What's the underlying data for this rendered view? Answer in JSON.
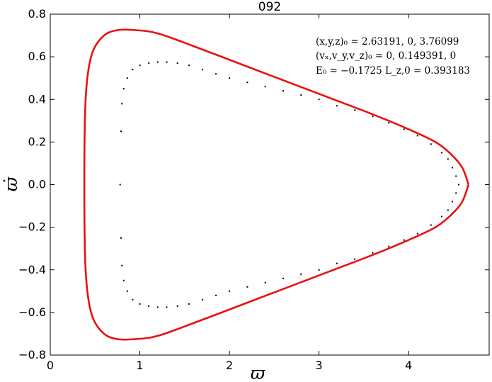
{
  "chart_data": {
    "type": "line",
    "title": "092",
    "xlabel": "ϖ",
    "ylabel": "ϖ̇",
    "xlim": [
      0,
      4.9
    ],
    "ylim": [
      -0.8,
      0.8
    ],
    "x_ticks": [
      0,
      1,
      2,
      3,
      4
    ],
    "x_tick_labels": [
      "0",
      "1",
      "2",
      "3",
      "4"
    ],
    "y_ticks": [
      -0.8,
      -0.6,
      -0.4,
      -0.2,
      0.0,
      0.2,
      0.4,
      0.6,
      0.8
    ],
    "y_tick_labels": [
      "−0.8",
      "−0.6",
      "−0.4",
      "−0.2",
      "0.0",
      "0.2",
      "0.4",
      "0.6",
      "0.8"
    ],
    "grid": false,
    "annotations": [
      "(x,y,z)₀ = 2.63191, 0, 3.76099",
      "(vₓ,v_y,v_z)₀ = 0, 0.149391, 0",
      "E₀ = −0.1725  L_z,0 = 0.393183"
    ],
    "series": [
      {
        "style": "solid",
        "color": "#e8110f",
        "x": [
          4.67,
          4.6,
          4.48,
          4.3,
          4.0,
          3.6,
          3.1,
          2.6,
          2.1,
          1.6,
          1.2,
          0.95,
          0.75,
          0.6,
          0.48,
          0.42,
          0.39,
          0.38,
          0.39,
          0.42,
          0.48,
          0.6,
          0.75,
          0.95,
          1.2,
          1.6,
          2.1,
          2.6,
          3.1,
          3.6,
          4.0,
          4.3,
          4.48,
          4.6,
          4.67
        ],
        "y": [
          0.0,
          0.08,
          0.14,
          0.2,
          0.26,
          0.33,
          0.41,
          0.49,
          0.57,
          0.65,
          0.71,
          0.725,
          0.725,
          0.7,
          0.63,
          0.52,
          0.35,
          0.0,
          -0.35,
          -0.52,
          -0.63,
          -0.7,
          -0.725,
          -0.725,
          -0.71,
          -0.65,
          -0.57,
          -0.49,
          -0.41,
          -0.33,
          -0.26,
          -0.2,
          -0.14,
          -0.08,
          0.0
        ]
      },
      {
        "style": "dotted",
        "color": "#000000",
        "x": [
          4.56,
          4.53,
          4.49,
          4.44,
          4.37,
          4.25,
          4.1,
          3.95,
          3.78,
          3.6,
          3.4,
          3.2,
          3.0,
          2.8,
          2.6,
          2.4,
          2.2,
          2.0,
          1.85,
          1.7,
          1.55,
          1.42,
          1.3,
          1.2,
          1.1,
          1.0,
          0.92,
          0.86,
          0.82,
          0.8,
          0.79,
          0.78,
          0.79,
          0.8,
          0.82,
          0.86,
          0.92,
          1.0,
          1.1,
          1.2,
          1.3,
          1.42,
          1.55,
          1.7,
          1.85,
          2.0,
          2.2,
          2.4,
          2.6,
          2.8,
          3.0,
          3.2,
          3.4,
          3.6,
          3.78,
          3.95,
          4.1,
          4.25,
          4.37,
          4.44,
          4.49,
          4.53,
          4.56
        ],
        "y": [
          0.0,
          0.04,
          0.08,
          0.12,
          0.15,
          0.19,
          0.23,
          0.26,
          0.29,
          0.32,
          0.35,
          0.37,
          0.4,
          0.42,
          0.44,
          0.46,
          0.48,
          0.5,
          0.52,
          0.54,
          0.56,
          0.57,
          0.575,
          0.575,
          0.57,
          0.56,
          0.54,
          0.5,
          0.45,
          0.38,
          0.25,
          0.0,
          -0.25,
          -0.38,
          -0.45,
          -0.5,
          -0.54,
          -0.56,
          -0.57,
          -0.575,
          -0.575,
          -0.57,
          -0.56,
          -0.54,
          -0.52,
          -0.5,
          -0.48,
          -0.46,
          -0.44,
          -0.42,
          -0.4,
          -0.37,
          -0.35,
          -0.32,
          -0.29,
          -0.26,
          -0.23,
          -0.19,
          -0.15,
          -0.12,
          -0.08,
          -0.04,
          0.0
        ]
      }
    ]
  }
}
